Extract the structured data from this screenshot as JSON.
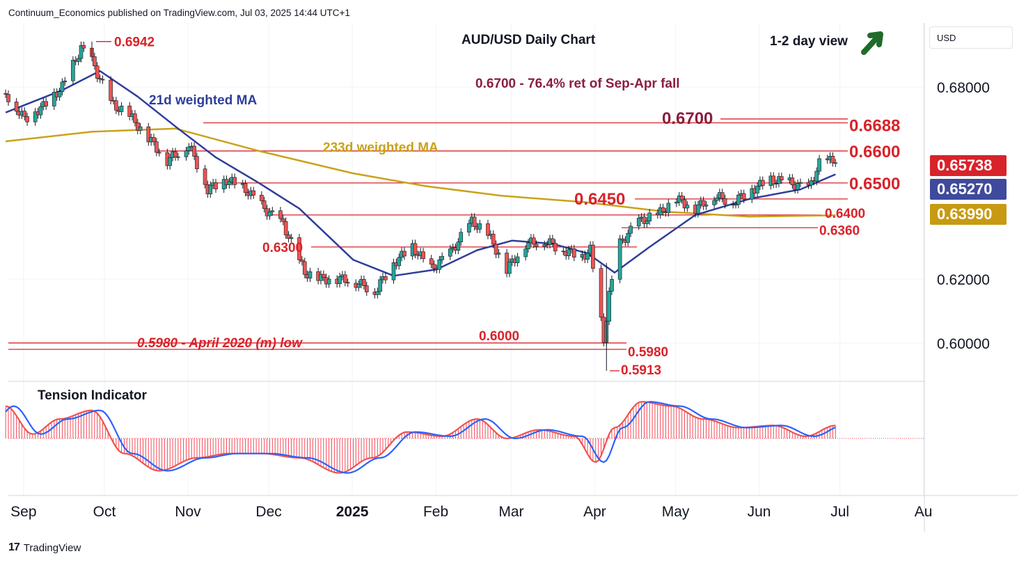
{
  "header": {
    "published": "Continuum_Economics published on TradingView.com, Jul 03, 2025 14:44 UTC+1"
  },
  "footer": {
    "brand": "TradingView"
  },
  "currency_selector": {
    "label": "USD"
  },
  "colors": {
    "up": "#26a69a",
    "down": "#ef5350",
    "ma21": "#2e3e9a",
    "ma233": "#c9a21a",
    "level": "#d8232a",
    "bar": "#f23645",
    "osc_line": "#2962ff"
  },
  "price_badges": [
    {
      "value": "0.65738",
      "color": "#d8232a"
    },
    {
      "value": "0.65270",
      "color": "#3f4a9c"
    },
    {
      "value": "0.63990",
      "color": "#c79a12"
    }
  ],
  "chart_data": [
    {
      "type": "candlestick",
      "title": "AUD/USD Daily Chart",
      "view": "1-2 day view",
      "view_direction": "up",
      "x_tick_labels": [
        "Sep",
        "Oct",
        "Nov",
        "Dec",
        "2025",
        "Feb",
        "Mar",
        "Apr",
        "May",
        "Jun",
        "Jul",
        "Au"
      ],
      "y_tick_labels": [
        "0.68000",
        "0.62000",
        "0.60000"
      ],
      "ylim": [
        0.588,
        0.7
      ],
      "grid": true,
      "overlays": [
        {
          "name": "21d weighted MA",
          "color": "#2e3e9a"
        },
        {
          "name": "233d weighted MA",
          "color": "#c9a21a"
        }
      ],
      "annotations": [
        "0.6700 - 76.4% ret of Sep-Apr fall",
        "0.5980 - April 2020 (m) low"
      ],
      "levels": [
        {
          "value": 0.6942,
          "label": "0.6942"
        },
        {
          "value": 0.67,
          "label": "0.6700"
        },
        {
          "value": 0.6688,
          "label": "0.6688"
        },
        {
          "value": 0.66,
          "label": "0.6600"
        },
        {
          "value": 0.65,
          "label": "0.6500"
        },
        {
          "value": 0.645,
          "label": "0.6450"
        },
        {
          "value": 0.64,
          "label": "0.6400"
        },
        {
          "value": 0.636,
          "label": "0.6360"
        },
        {
          "value": 0.63,
          "label": "0.6300"
        },
        {
          "value": 0.6,
          "label": "0.6000"
        },
        {
          "value": 0.598,
          "label": "0.5980"
        },
        {
          "value": 0.5913,
          "label": "0.5913"
        }
      ],
      "close_series": {
        "x": [
          "2024-08-29",
          "2024-09-05",
          "2024-09-12",
          "2024-09-19",
          "2024-09-26",
          "2024-09-30",
          "2024-10-07",
          "2024-10-14",
          "2024-10-21",
          "2024-10-28",
          "2024-11-05",
          "2024-11-12",
          "2024-11-19",
          "2024-11-26",
          "2024-12-03",
          "2024-12-10",
          "2024-12-18",
          "2024-12-24",
          "2025-01-02",
          "2025-01-09",
          "2025-01-13",
          "2025-01-20",
          "2025-01-27",
          "2025-02-03",
          "2025-02-10",
          "2025-02-18",
          "2025-02-24",
          "2025-03-03",
          "2025-03-10",
          "2025-03-17",
          "2025-03-24",
          "2025-03-31",
          "2025-04-03",
          "2025-04-08",
          "2025-04-10",
          "2025-04-14",
          "2025-04-21",
          "2025-04-28",
          "2025-05-05",
          "2025-05-12",
          "2025-05-19",
          "2025-05-26",
          "2025-06-02",
          "2025-06-09",
          "2025-06-16",
          "2025-06-23",
          "2025-06-27",
          "2025-07-03"
        ],
        "values": [
          0.678,
          0.67,
          0.674,
          0.68,
          0.692,
          0.688,
          0.675,
          0.671,
          0.664,
          0.657,
          0.662,
          0.648,
          0.651,
          0.648,
          0.642,
          0.637,
          0.622,
          0.62,
          0.62,
          0.618,
          0.616,
          0.625,
          0.63,
          0.623,
          0.628,
          0.638,
          0.634,
          0.623,
          0.631,
          0.632,
          0.629,
          0.627,
          0.629,
          0.601,
          0.615,
          0.631,
          0.638,
          0.64,
          0.645,
          0.642,
          0.646,
          0.644,
          0.648,
          0.651,
          0.65,
          0.648,
          0.656,
          0.6574
        ]
      },
      "ma21_series": {
        "x": [
          "2024-08-29",
          "2024-09-19",
          "2024-10-03",
          "2024-10-17",
          "2024-11-01",
          "2024-11-15",
          "2024-12-01",
          "2024-12-16",
          "2025-01-05",
          "2025-01-20",
          "2025-02-05",
          "2025-02-20",
          "2025-03-05",
          "2025-03-20",
          "2025-04-02",
          "2025-04-12",
          "2025-04-25",
          "2025-05-12",
          "2025-06-01",
          "2025-06-20",
          "2025-07-03"
        ],
        "values": [
          0.672,
          0.679,
          0.685,
          0.677,
          0.667,
          0.658,
          0.65,
          0.642,
          0.626,
          0.621,
          0.623,
          0.629,
          0.632,
          0.631,
          0.628,
          0.622,
          0.63,
          0.64,
          0.645,
          0.648,
          0.6527
        ]
      },
      "ma233_series": {
        "x": [
          "2024-08-29",
          "2024-09-30",
          "2024-10-31",
          "2024-12-01",
          "2025-01-05",
          "2025-02-01",
          "2025-03-01",
          "2025-04-01",
          "2025-05-01",
          "2025-06-01",
          "2025-07-03"
        ],
        "values": [
          0.663,
          0.666,
          0.667,
          0.66,
          0.653,
          0.649,
          0.646,
          0.644,
          0.641,
          0.6395,
          0.6399
        ]
      }
    },
    {
      "type": "area",
      "title": "Tension Indicator",
      "x": [
        "2024-08-29",
        "2024-09-08",
        "2024-09-18",
        "2024-09-30",
        "2024-10-12",
        "2024-10-25",
        "2024-11-08",
        "2024-11-20",
        "2024-12-02",
        "2024-12-16",
        "2024-12-31",
        "2025-01-12",
        "2025-01-25",
        "2025-02-07",
        "2025-02-20",
        "2025-03-03",
        "2025-03-15",
        "2025-03-28",
        "2025-04-05",
        "2025-04-12",
        "2025-04-22",
        "2025-05-03",
        "2025-05-15",
        "2025-05-28",
        "2025-06-10",
        "2025-06-22",
        "2025-07-03"
      ],
      "values": [
        0.75,
        0.1,
        0.45,
        0.65,
        -0.35,
        -0.75,
        -0.45,
        -0.35,
        -0.35,
        -0.45,
        -0.8,
        -0.45,
        0.15,
        0.05,
        0.45,
        0.0,
        0.2,
        0.05,
        -0.55,
        0.25,
        0.85,
        0.75,
        0.45,
        0.25,
        0.3,
        0.05,
        0.3
      ],
      "ylim": [
        -1,
        1
      ]
    }
  ]
}
